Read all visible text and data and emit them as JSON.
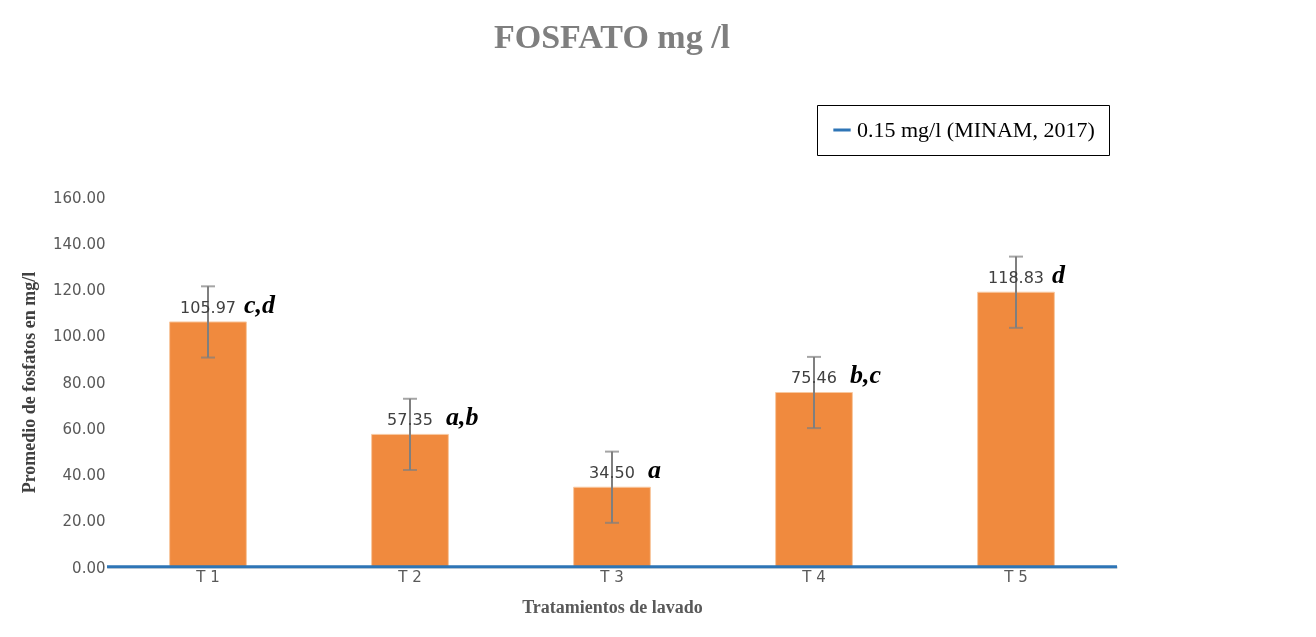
{
  "chart_data": {
    "type": "bar",
    "title": "FOSFATO mg /l",
    "xlabel": "Tratamientos de lavado",
    "ylabel": "Promedio de fosfatos en mg/l",
    "categories": [
      "T 1",
      "T 2",
      "T 3",
      "T 4",
      "T 5"
    ],
    "values": [
      105.97,
      57.35,
      34.5,
      75.46,
      118.83
    ],
    "value_labels": [
      "105.97",
      "57.35",
      "34.50",
      "75.46",
      "118.83"
    ],
    "errors": [
      15.4,
      15.4,
      15.4,
      15.4,
      15.4
    ],
    "color": "#f08a3e",
    "ylim": [
      0,
      160
    ],
    "yticks": [
      {
        "value": 0,
        "label": "0.00"
      },
      {
        "value": 20,
        "label": "20.00"
      },
      {
        "value": 40,
        "label": "40.00"
      },
      {
        "value": 60,
        "label": "60.00"
      },
      {
        "value": 80,
        "label": "80.00"
      },
      {
        "value": 100,
        "label": "100.00"
      },
      {
        "value": 120,
        "label": "120.00"
      },
      {
        "value": 140,
        "label": "140.00"
      },
      {
        "value": 160,
        "label": "160.00"
      }
    ],
    "ref_lines": [
      {
        "axis": "y",
        "value": 0.15,
        "label": "0.15 mg/l (MINAM, 2017)",
        "color": "#2e75b6"
      }
    ],
    "annotations": [
      {
        "text": "c,d",
        "x": "T 1",
        "y": 105.97
      },
      {
        "text": "a,b",
        "x": "T 2",
        "y": 57.35
      },
      {
        "text": "a",
        "x": "T 3",
        "y": 34.5
      },
      {
        "text": "b,c",
        "x": "T 4",
        "y": 75.46
      },
      {
        "text": "d",
        "x": "T 5",
        "y": 118.83
      }
    ],
    "grid": false,
    "legend": "top right"
  }
}
